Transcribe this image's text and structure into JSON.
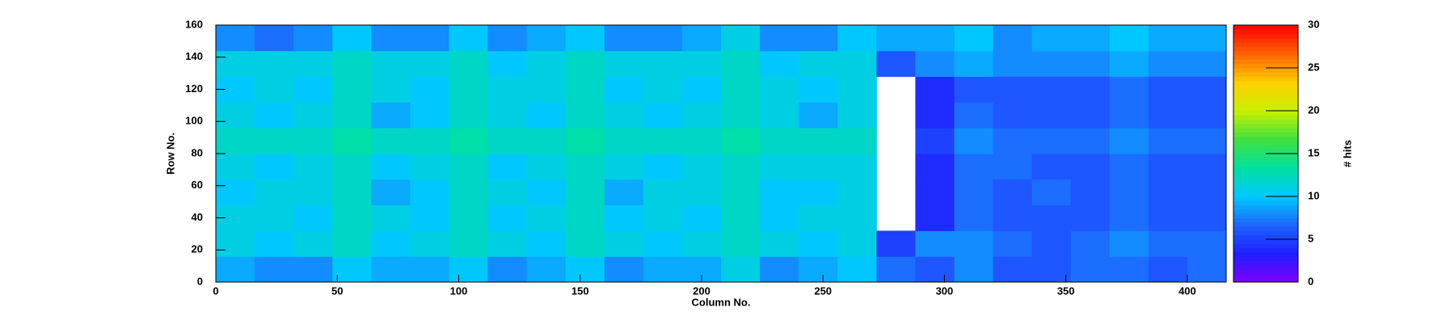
{
  "chart_data": {
    "type": "heatmap",
    "x_label": "Column No.",
    "y_label": "Row No.",
    "z_label": "# hits",
    "xlim": [
      0,
      416
    ],
    "ylim": [
      0,
      160
    ],
    "zlim": [
      0,
      30
    ],
    "xticks": [
      0,
      50,
      100,
      150,
      200,
      250,
      300,
      350,
      400
    ],
    "yticks": [
      0,
      20,
      40,
      60,
      80,
      100,
      120,
      140,
      160
    ],
    "zticks": [
      0,
      5,
      10,
      15,
      20,
      25,
      30
    ],
    "x_bins": [
      0,
      16,
      32,
      48,
      64,
      80,
      96,
      112,
      128,
      144,
      160,
      176,
      192,
      208,
      224,
      240,
      256,
      272,
      288,
      304,
      320,
      336,
      352,
      368,
      384,
      400,
      416
    ],
    "y_bins": [
      0,
      16,
      32,
      48,
      64,
      80,
      96,
      112,
      128,
      144,
      160
    ],
    "z": [
      [
        9,
        8,
        8,
        10,
        9,
        9,
        10,
        8,
        9,
        10,
        8,
        9,
        9,
        11,
        8,
        9,
        10,
        7,
        6,
        8,
        6,
        6,
        7,
        7,
        6,
        7
      ],
      [
        11,
        10,
        11,
        12,
        10,
        11,
        12,
        11,
        10,
        12,
        11,
        10,
        11,
        12,
        11,
        10,
        11,
        5,
        8,
        8,
        7,
        6,
        7,
        8,
        7,
        7
      ],
      [
        11,
        11,
        10,
        12,
        11,
        10,
        12,
        10,
        11,
        12,
        10,
        11,
        10,
        12,
        10,
        11,
        11,
        null,
        4,
        7,
        6,
        6,
        6,
        7,
        6,
        6
      ],
      [
        10,
        11,
        11,
        12,
        9,
        10,
        12,
        11,
        10,
        12,
        9,
        11,
        11,
        12,
        10,
        10,
        11,
        null,
        4,
        7,
        6,
        7,
        6,
        7,
        6,
        6
      ],
      [
        11,
        10,
        11,
        12,
        10,
        11,
        12,
        10,
        11,
        12,
        11,
        10,
        11,
        12,
        11,
        11,
        11,
        null,
        4,
        7,
        7,
        6,
        6,
        7,
        6,
        6
      ],
      [
        12,
        12,
        12,
        13,
        12,
        12,
        13,
        12,
        12,
        13,
        12,
        12,
        12,
        13,
        12,
        12,
        12,
        null,
        5,
        8,
        7,
        7,
        7,
        8,
        7,
        7
      ],
      [
        11,
        10,
        11,
        12,
        9,
        10,
        12,
        11,
        10,
        12,
        11,
        10,
        11,
        12,
        11,
        9,
        11,
        null,
        4,
        7,
        6,
        6,
        6,
        7,
        6,
        6
      ],
      [
        10,
        11,
        10,
        12,
        11,
        10,
        12,
        11,
        11,
        12,
        10,
        11,
        10,
        12,
        11,
        10,
        11,
        null,
        4,
        6,
        6,
        6,
        6,
        7,
        6,
        6
      ],
      [
        11,
        11,
        11,
        12,
        11,
        11,
        12,
        10,
        11,
        12,
        11,
        11,
        11,
        12,
        10,
        11,
        11,
        6,
        8,
        9,
        8,
        8,
        8,
        9,
        8,
        8
      ],
      [
        8,
        7,
        8,
        10,
        8,
        8,
        10,
        8,
        9,
        10,
        8,
        8,
        9,
        11,
        8,
        8,
        10,
        9,
        9,
        10,
        8,
        9,
        9,
        10,
        9,
        9
      ]
    ],
    "colorscale": [
      "#8000ff",
      "#1e1eff",
      "#1e64ff",
      "#00c8ff",
      "#00e0a0",
      "#40e040",
      "#c8f000",
      "#ffd000",
      "#ff6000",
      "#ff0000"
    ]
  }
}
